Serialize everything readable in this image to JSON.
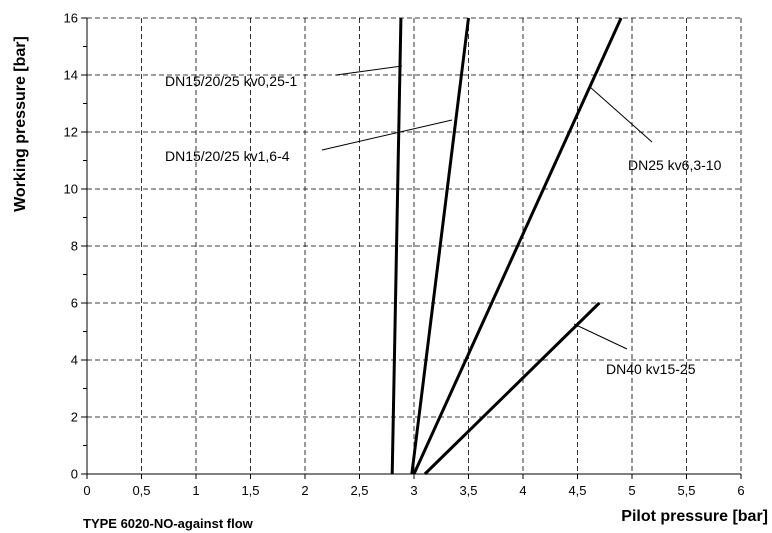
{
  "chart_data": {
    "type": "line",
    "title": "",
    "caption": "TYPE 6020-NO-against flow",
    "xlabel": "Pilot pressure [bar]",
    "ylabel": "Working pressure [bar]",
    "xlim": [
      0,
      6
    ],
    "ylim": [
      0,
      16
    ],
    "x_ticks": [
      0,
      0.5,
      1,
      1.5,
      2,
      2.5,
      3,
      3.5,
      4,
      4.5,
      5,
      5.5,
      6
    ],
    "x_tick_labels": [
      "0",
      "0,5",
      "1",
      "1,5",
      "2",
      "2,5",
      "3",
      "3,5",
      "4",
      "4,5",
      "5",
      "5,5",
      "6"
    ],
    "y_ticks": [
      0,
      2,
      4,
      6,
      8,
      10,
      12,
      14,
      16
    ],
    "y_tick_labels": [
      "0",
      "2",
      "4",
      "6",
      "8",
      "10",
      "12",
      "14",
      "16"
    ],
    "grid": true,
    "series": [
      {
        "name": "DN15/20/25 kv0,25-1",
        "x": [
          2.8,
          2.88
        ],
        "y": [
          0,
          16
        ]
      },
      {
        "name": "DN15/20/25 kv1,6-4",
        "x": [
          2.98,
          3.5
        ],
        "y": [
          0,
          16
        ]
      },
      {
        "name": "DN25 kv6,3-10",
        "x": [
          3.0,
          4.9
        ],
        "y": [
          0,
          16
        ]
      },
      {
        "name": "DN40 kv15-25",
        "x": [
          3.1,
          4.7
        ],
        "y": [
          0,
          6
        ]
      }
    ]
  }
}
